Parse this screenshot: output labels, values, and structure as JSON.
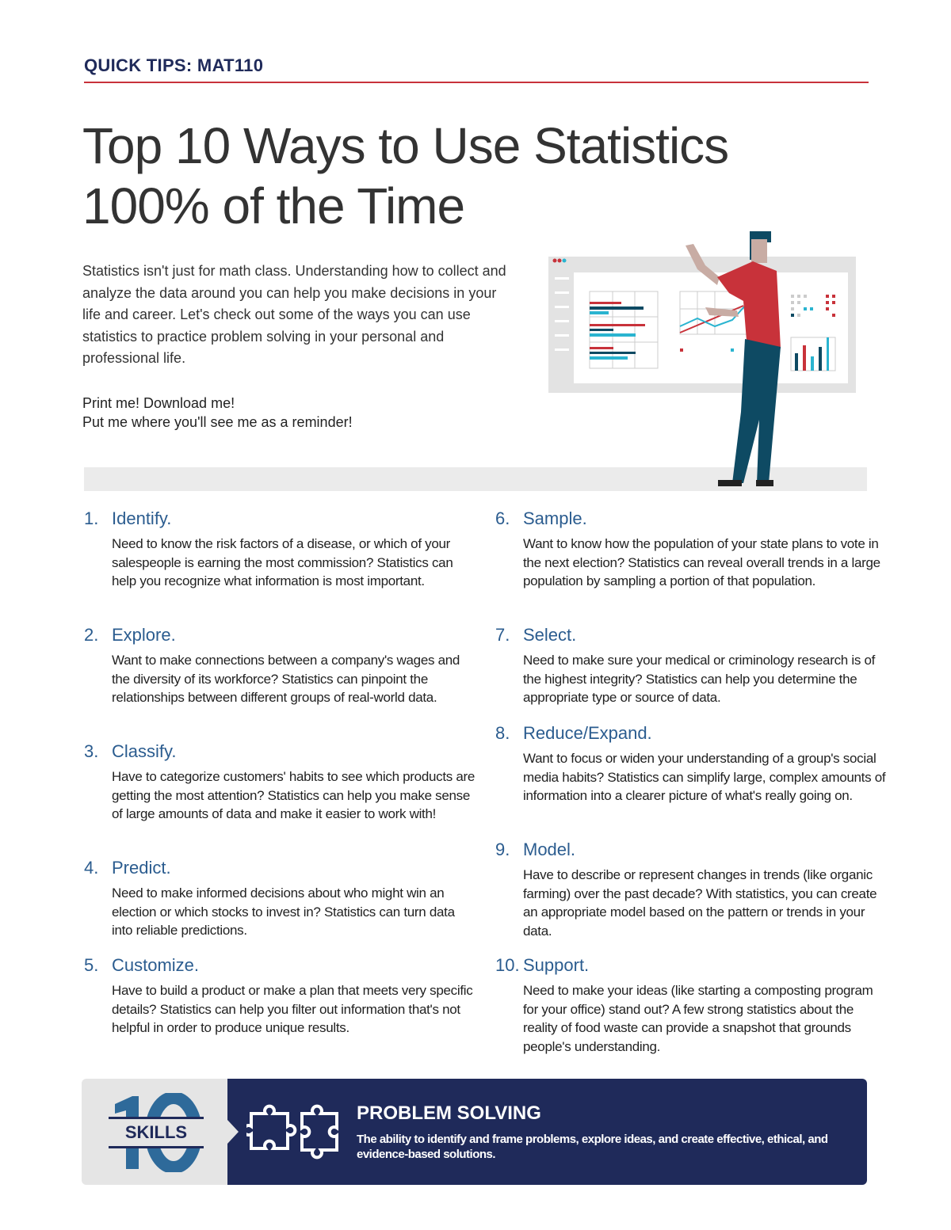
{
  "header": {
    "kicker": "QUICK TIPS: MAT110",
    "title_line1": "Top 10 Ways to Use Statistics",
    "title_line2": "100% of the Time"
  },
  "intro": "Statistics isn't just for math class. Understanding how to collect and analyze the data around you can help you make decisions in your life and career. Let's check out some of the ways you can use statistics to practice problem solving in your personal and professional life.",
  "cta": {
    "line1": "Print me! Download me!",
    "line2": "Put me where you'll see me as a reminder!"
  },
  "colors": {
    "navy": "#1f2a5a",
    "red": "#c8323a",
    "heading_blue": "#2b5c8f",
    "teal": "#2ab4d0",
    "dark_teal": "#0e4a63"
  },
  "items": [
    {
      "num": "1.",
      "title": "Identify.",
      "body": "Need to know the risk factors of a disease, or which of your salespeople is earning the most commission? Statistics can help you recognize what information is most important."
    },
    {
      "num": "2.",
      "title": "Explore.",
      "body": "Want to make connections between a company's wages and the diversity of its workforce? Statistics can pinpoint the relationships between different groups of real-world data."
    },
    {
      "num": "3.",
      "title": "Classify.",
      "body": "Have to categorize customers' habits to see which products are getting the most attention? Statistics can help you make sense of large amounts of data and make it easier to work with!"
    },
    {
      "num": "4.",
      "title": "Predict.",
      "body": "Need to make informed decisions about who might win an election or which stocks to invest in? Statistics can turn data into reliable predictions."
    },
    {
      "num": "5.",
      "title": "Customize.",
      "body": "Have to build a product or make a plan that meets very specific details? Statistics can help you filter out information that's not helpful in order to produce unique results."
    },
    {
      "num": "6.",
      "title": "Sample.",
      "body": "Want to know how the population of your state plans to vote in the next election? Statistics can reveal overall trends in a large population by sampling a portion of that population."
    },
    {
      "num": "7.",
      "title": "Select.",
      "body": "Need to make sure your medical or criminology research is of the highest integrity? Statistics can help you determine the appropriate type or source of data."
    },
    {
      "num": "8.",
      "title": "Reduce/Expand.",
      "body": "Want to focus or widen your understanding of a group's social media habits? Statistics can simplify large, complex amounts of information into a clearer picture of what's really going on."
    },
    {
      "num": "9.",
      "title": "Model.",
      "body": "Have to describe or represent changes in trends (like organic farming) over the past decade? With statistics, you can create an appropriate model based on the pattern or trends in your data."
    },
    {
      "num": "10.",
      "title": "Support.",
      "body": "Need to make your ideas (like starting a composting program for your office) stand out? A few strong statistics about the reality of food waste can provide a snapshot that grounds people's understanding."
    }
  ],
  "banner": {
    "logo_number": "10",
    "logo_word": "SKILLS",
    "title": "PROBLEM SOLVING",
    "description": "The ability to identify and frame problems, explore ideas, and create effective, ethical, and evidence-based solutions."
  }
}
